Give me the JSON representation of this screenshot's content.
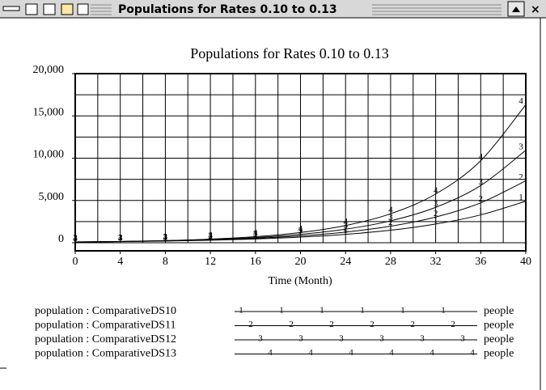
{
  "window": {
    "title": "Populations for Rates 0.10 to 0.13"
  },
  "chart_data": {
    "type": "line",
    "title": "Populations for Rates 0.10 to 0.13",
    "x_label": "Time (Month)",
    "x": [
      0,
      4,
      8,
      12,
      16,
      20,
      24,
      28,
      32,
      36,
      40
    ],
    "xlim": [
      0,
      40
    ],
    "xticks": [
      0,
      4,
      8,
      12,
      16,
      20,
      24,
      28,
      32,
      36,
      40
    ],
    "xgrid_ticks": [
      0,
      2,
      4,
      6,
      8,
      10,
      12,
      14,
      16,
      18,
      20,
      22,
      24,
      26,
      28,
      30,
      32,
      34,
      36,
      38,
      40
    ],
    "ylim": [
      0,
      20000
    ],
    "yticks": [
      0,
      {
        "value": 5000,
        "label": "5,000"
      },
      {
        "value": 10000,
        "label": "10,000"
      },
      {
        "value": 15000,
        "label": "15,000"
      },
      {
        "value": 20000,
        "label": "20,000"
      }
    ],
    "ygrid_ticks": [
      0,
      2500,
      5000,
      7500,
      10000,
      12500,
      15000,
      17500,
      20000
    ],
    "grid": true,
    "series": [
      {
        "name": "population : ComparativeDS10",
        "marker": "1",
        "unit": "people",
        "color": "#000000",
        "values": [
          90,
          134,
          200,
          299,
          446,
          665,
          992,
          1480,
          2208,
          3294,
          4914
        ]
      },
      {
        "name": "population : ComparativeDS11",
        "marker": "2",
        "unit": "people",
        "color": "#000000",
        "values": [
          90,
          140,
          217,
          337,
          523,
          812,
          1261,
          1958,
          3040,
          4721,
          7331
        ]
      },
      {
        "name": "population : ComparativeDS12",
        "marker": "3",
        "unit": "people",
        "color": "#000000",
        "values": [
          90,
          145,
          235,
          380,
          614,
          992,
          1603,
          2591,
          4188,
          6767,
          10935
        ]
      },
      {
        "name": "population : ComparativeDS13",
        "marker": "4",
        "unit": "people",
        "color": "#000000",
        "values": [
          90,
          151,
          255,
          428,
          720,
          1211,
          2038,
          3428,
          5766,
          9700,
          16318
        ]
      }
    ]
  }
}
